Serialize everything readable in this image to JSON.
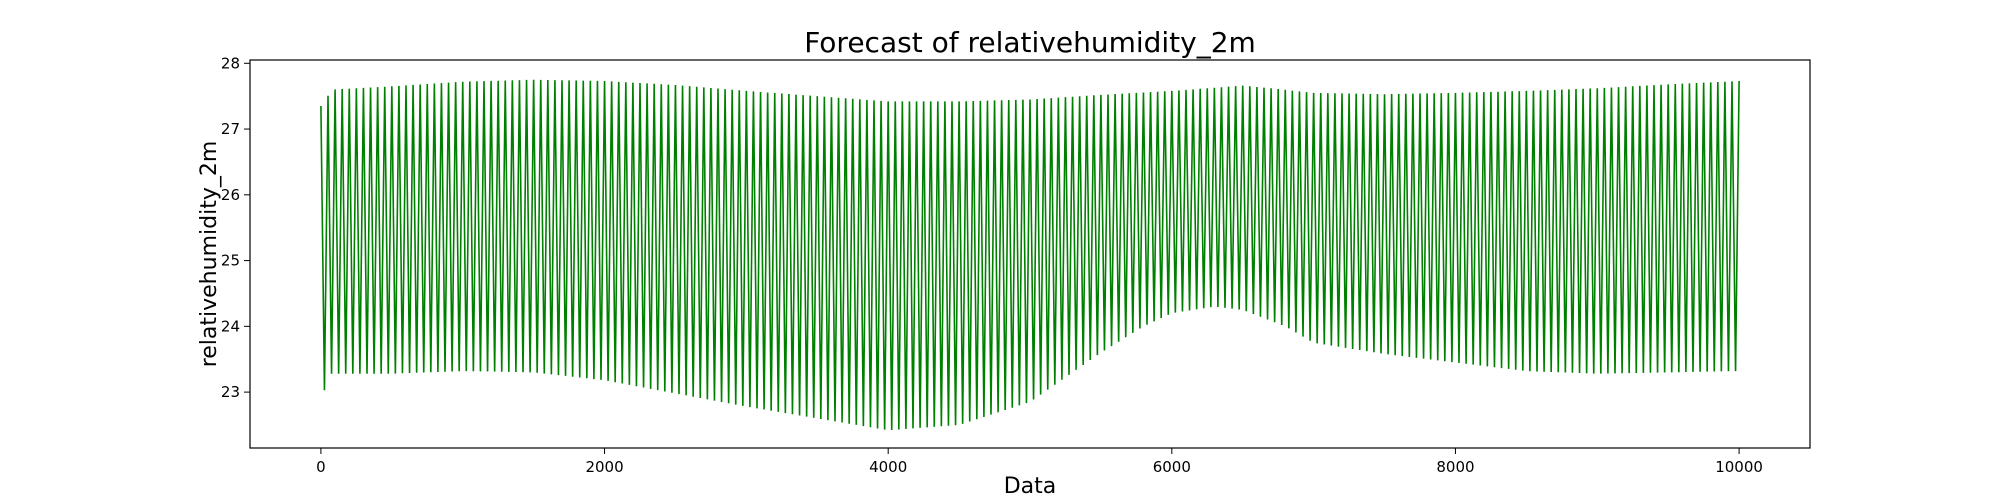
{
  "chart_data": {
    "type": "line",
    "title": "Forecast of relativehumidity_2m",
    "xlabel": "Data",
    "ylabel": "relativehumidity_2m",
    "xlim": [
      -500,
      10500
    ],
    "ylim": [
      22.15,
      28.05
    ],
    "xticks": [
      0,
      2000,
      4000,
      6000,
      8000,
      10000
    ],
    "yticks": [
      23,
      24,
      25,
      26,
      27,
      28
    ],
    "grid": false,
    "color": "#008000",
    "series": [
      {
        "oscillation_period": 50,
        "upper_envelope": [
          [
            0,
            27.35
          ],
          [
            80,
            27.6
          ],
          [
            500,
            27.65
          ],
          [
            1000,
            27.72
          ],
          [
            1500,
            27.75
          ],
          [
            2000,
            27.73
          ],
          [
            2500,
            27.67
          ],
          [
            3000,
            27.58
          ],
          [
            3500,
            27.5
          ],
          [
            4000,
            27.42
          ],
          [
            4500,
            27.42
          ],
          [
            5000,
            27.45
          ],
          [
            5500,
            27.52
          ],
          [
            6000,
            27.58
          ],
          [
            6500,
            27.66
          ],
          [
            6700,
            27.62
          ],
          [
            7000,
            27.55
          ],
          [
            7500,
            27.53
          ],
          [
            8000,
            27.55
          ],
          [
            8500,
            27.58
          ],
          [
            9000,
            27.62
          ],
          [
            9500,
            27.68
          ],
          [
            10000,
            27.73
          ]
        ],
        "lower_envelope": [
          [
            0,
            22.85
          ],
          [
            60,
            23.28
          ],
          [
            500,
            23.28
          ],
          [
            1000,
            23.32
          ],
          [
            1500,
            23.3
          ],
          [
            2000,
            23.18
          ],
          [
            2500,
            22.98
          ],
          [
            3000,
            22.78
          ],
          [
            3500,
            22.6
          ],
          [
            4000,
            22.42
          ],
          [
            4500,
            22.5
          ],
          [
            5000,
            22.85
          ],
          [
            5500,
            23.6
          ],
          [
            5800,
            24.0
          ],
          [
            6000,
            24.2
          ],
          [
            6300,
            24.3
          ],
          [
            6500,
            24.25
          ],
          [
            6800,
            24.0
          ],
          [
            7000,
            23.75
          ],
          [
            7500,
            23.58
          ],
          [
            8000,
            23.45
          ],
          [
            8500,
            23.32
          ],
          [
            9000,
            23.28
          ],
          [
            9500,
            23.3
          ],
          [
            10000,
            23.32
          ]
        ]
      }
    ]
  }
}
